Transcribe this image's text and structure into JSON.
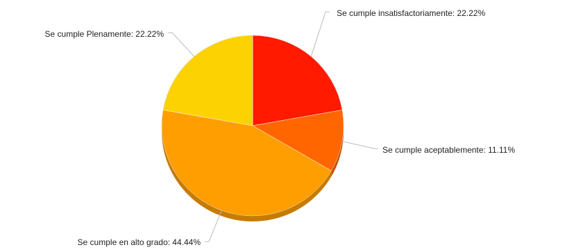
{
  "chart_data": {
    "type": "pie",
    "title": "",
    "start_angle_deg": 0,
    "direction": "clockwise",
    "slices": [
      {
        "label": "Se cumple insatisfactoriamente",
        "value": 22.22,
        "color": "#ff1a00"
      },
      {
        "label": "Se cumple aceptablemente",
        "value": 11.11,
        "color": "#ff6600"
      },
      {
        "label": "Se cumple en alto grado",
        "value": 44.44,
        "color": "#ff9e01"
      },
      {
        "label": "Se cumple Plenamente",
        "value": 22.22,
        "color": "#fcd202"
      }
    ],
    "data_labels": [
      "Se cumple insatisfactoriamente: 22.22%",
      "Se cumple aceptablemente: 11.11%",
      "Se cumple en alto grado: 44.44%",
      "Se cumple Plenamente: 22.22%"
    ],
    "legend": "none",
    "style": "3d-pie-with-leader-lines"
  }
}
